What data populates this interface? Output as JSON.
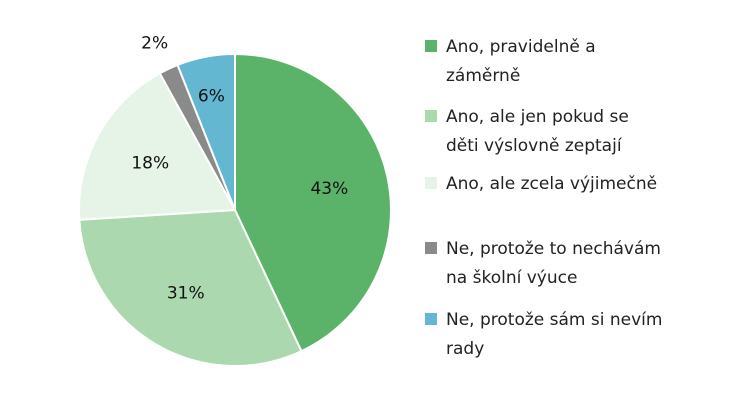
{
  "chart_data": {
    "type": "pie",
    "legend_position": "right",
    "slices": [
      {
        "label_lines": [
          "Ano, pravidelně a",
          "záměrně"
        ],
        "value": 43,
        "display": "43%",
        "color": "#5bb36a"
      },
      {
        "label_lines": [
          "Ano, ale jen pokud se",
          "děti výslovně zeptají"
        ],
        "value": 31,
        "display": "31%",
        "color": "#acd8b0"
      },
      {
        "label_lines": [
          "Ano, ale zcela výjimečně"
        ],
        "value": 18,
        "display": "18%",
        "color": "#e6f3e7"
      },
      {
        "label_lines": [
          "Ne, protože to nechávám",
          "na školní výuce"
        ],
        "value": 2,
        "display": "2%",
        "color": "#8a8a8a"
      },
      {
        "label_lines": [
          "Ne, protože sám si nevím",
          "rady"
        ],
        "value": 6,
        "display": "6%",
        "color": "#63b7d1"
      }
    ]
  }
}
